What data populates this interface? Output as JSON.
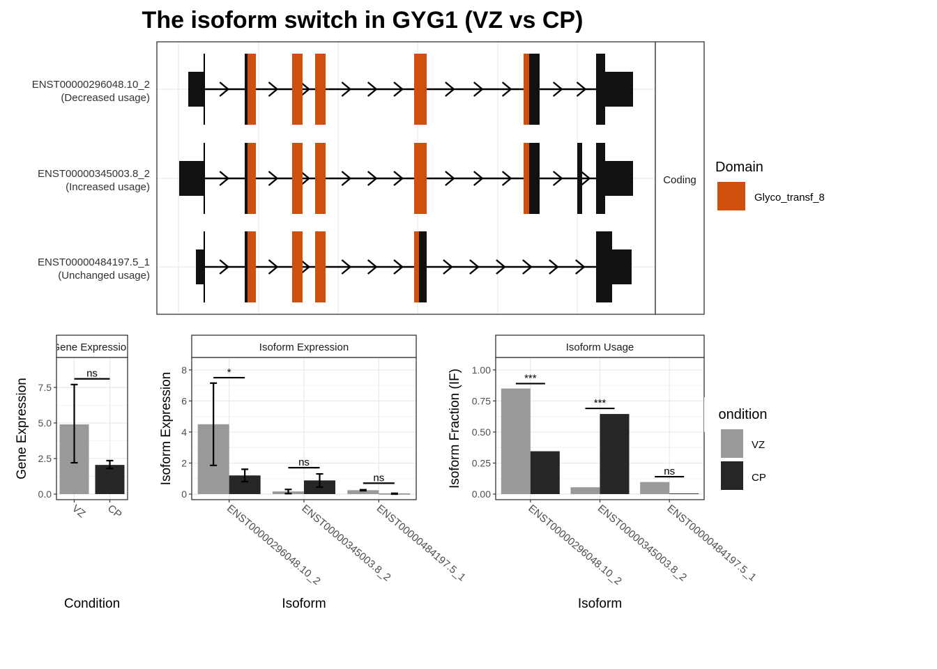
{
  "title": "The isoform switch in GYG1 (VZ vs CP)",
  "colors": {
    "domain": "#D14F0C",
    "exon": "#111111",
    "vz": "#999999",
    "cp": "#262626",
    "grid": "#ebebeb",
    "panel_border": "#333333"
  },
  "legends": {
    "domain_title": "Domain",
    "domain_label": "Glyco_transf_8",
    "condition_title": "Condition",
    "conditions": [
      "VZ",
      "CP"
    ]
  },
  "chart_data": [
    {
      "type": "gene-structure",
      "facet_label": "Coding",
      "transcripts": [
        {
          "id": "ENST00000296048.10_2",
          "usage": "(Decreased usage)"
        },
        {
          "id": "ENST00000345003.8_2",
          "usage": "(Increased usage)"
        },
        {
          "id": "ENST00000484197.5_1",
          "usage": "(Unchanged usage)"
        }
      ],
      "legend": "Glyco_transf_8"
    },
    {
      "type": "bar",
      "strip": "Gene Expression",
      "ylabel": "Gene Expression",
      "xlabel": "Condition",
      "categories": [
        "VZ",
        "CP"
      ],
      "values": [
        4.9,
        2.05
      ],
      "errors": [
        [
          2.2,
          7.7
        ],
        [
          1.8,
          2.35
        ]
      ],
      "yticks": [
        "0.0",
        "2.5",
        "5.0",
        "7.5"
      ],
      "ylim": [
        0,
        9.6
      ],
      "significance": [
        {
          "label": "ns",
          "y": 8.1
        }
      ]
    },
    {
      "type": "bar",
      "strip": "Isoform Expression",
      "ylabel": "Isoform Expression",
      "xlabel": "Isoform",
      "categories": [
        "ENST00000296048.10_2",
        "ENST00000345003.8_2",
        "ENST00000484197.5_1"
      ],
      "yticks": [
        "0",
        "2",
        "4",
        "6",
        "8"
      ],
      "ylim": [
        0,
        8.8
      ],
      "series": [
        {
          "name": "VZ",
          "values": [
            4.5,
            0.17,
            0.25
          ],
          "errors": [
            [
              1.85,
              7.15
            ],
            [
              0.03,
              0.3
            ],
            [
              0.22,
              0.28
            ]
          ]
        },
        {
          "name": "CP",
          "values": [
            1.2,
            0.88,
            0.02
          ],
          "errors": [
            [
              0.8,
              1.6
            ],
            [
              0.45,
              1.3
            ],
            [
              0.0,
              0.05
            ]
          ]
        }
      ],
      "significance": [
        {
          "label": "*",
          "y": 7.5
        },
        {
          "label": "ns",
          "y": 1.7
        },
        {
          "label": "ns",
          "y": 0.7
        }
      ]
    },
    {
      "type": "bar",
      "strip": "Isoform Usage",
      "ylabel": "Isoform Fraction (IF)",
      "xlabel": "Isoform",
      "categories": [
        "ENST00000296048.10_2",
        "ENST00000345003.8_2",
        "ENST00000484197.5_1"
      ],
      "yticks": [
        "0.00",
        "0.25",
        "0.50",
        "0.75",
        "1.00"
      ],
      "ylim": [
        0,
        1.1
      ],
      "series": [
        {
          "name": "VZ",
          "values": [
            0.85,
            0.055,
            0.097
          ]
        },
        {
          "name": "CP",
          "values": [
            0.345,
            0.645,
            0.005
          ]
        }
      ],
      "significance": [
        {
          "label": "***",
          "y": 0.89
        },
        {
          "label": "***",
          "y": 0.69
        },
        {
          "label": "ns",
          "y": 0.14
        }
      ]
    }
  ]
}
